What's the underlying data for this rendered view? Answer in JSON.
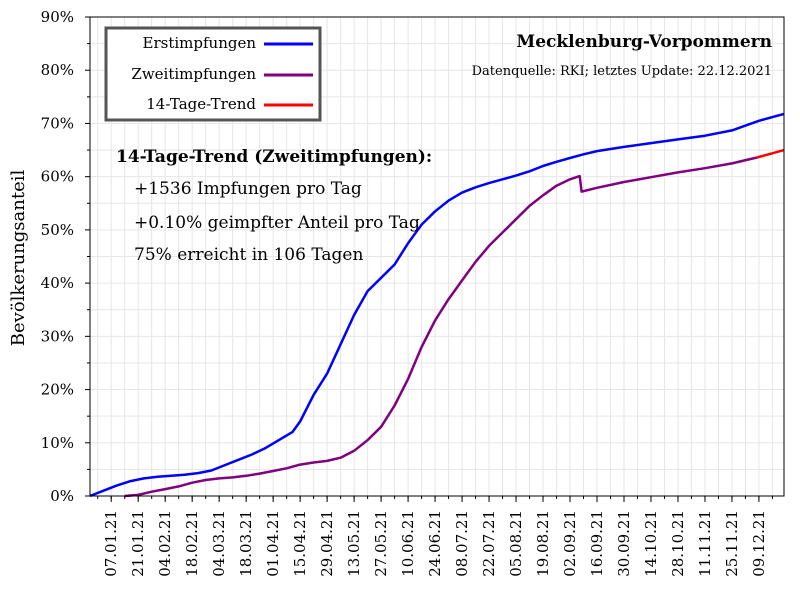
{
  "chart_data": {
    "type": "line",
    "title": "Mecklenburg-Vorpommern",
    "subtitle": "Datenquelle: RKI; letztes Update: 22.12.2021",
    "ylabel": "Bevölkerungsanteil",
    "xlabel": "",
    "ylim": [
      0,
      90
    ],
    "y_ticks": [
      0,
      10,
      20,
      30,
      40,
      50,
      60,
      70,
      80,
      90
    ],
    "y_tick_labels": [
      "0%",
      "10%",
      "20%",
      "30%",
      "40%",
      "50%",
      "60%",
      "70%",
      "80%",
      "90%"
    ],
    "x_ticks": [
      "2021-01-07",
      "2021-01-21",
      "2021-02-04",
      "2021-02-18",
      "2021-03-04",
      "2021-03-18",
      "2021-04-01",
      "2021-04-15",
      "2021-04-29",
      "2021-05-13",
      "2021-05-27",
      "2021-06-10",
      "2021-06-24",
      "2021-07-08",
      "2021-07-22",
      "2021-08-05",
      "2021-08-19",
      "2021-09-02",
      "2021-09-16",
      "2021-09-30",
      "2021-10-14",
      "2021-10-28",
      "2021-11-11",
      "2021-11-25",
      "2021-12-09"
    ],
    "x_tick_labels": [
      "07.01.21",
      "21.01.21",
      "04.02.21",
      "18.02.21",
      "04.03.21",
      "18.03.21",
      "01.04.21",
      "15.04.21",
      "29.04.21",
      "13.05.21",
      "27.05.21",
      "10.06.21",
      "24.06.21",
      "08.07.21",
      "22.07.21",
      "05.08.21",
      "19.08.21",
      "02.09.21",
      "16.09.21",
      "30.09.21",
      "14.10.21",
      "28.10.21",
      "11.11.21",
      "25.11.21",
      "09.12.21"
    ],
    "xlim": [
      "2020-12-27",
      "2021-12-22"
    ],
    "grid": true,
    "legend_position": "top-left",
    "series": [
      {
        "name": "Erstimpfungen",
        "color": "#0000ff",
        "points": [
          [
            "2020-12-27",
            0
          ],
          [
            "2021-01-03",
            1.0
          ],
          [
            "2021-01-10",
            2.0
          ],
          [
            "2021-01-17",
            2.8
          ],
          [
            "2021-01-24",
            3.3
          ],
          [
            "2021-01-31",
            3.6
          ],
          [
            "2021-02-07",
            3.8
          ],
          [
            "2021-02-14",
            4.0
          ],
          [
            "2021-02-21",
            4.3
          ],
          [
            "2021-02-28",
            4.8
          ],
          [
            "2021-03-07",
            5.8
          ],
          [
            "2021-03-14",
            6.8
          ],
          [
            "2021-03-21",
            7.8
          ],
          [
            "2021-03-28",
            9.0
          ],
          [
            "2021-04-04",
            10.5
          ],
          [
            "2021-04-11",
            12.0
          ],
          [
            "2021-04-15",
            14.0
          ],
          [
            "2021-04-22",
            19.0
          ],
          [
            "2021-04-29",
            23.0
          ],
          [
            "2021-05-06",
            28.5
          ],
          [
            "2021-05-13",
            34.0
          ],
          [
            "2021-05-20",
            38.5
          ],
          [
            "2021-05-27",
            41.0
          ],
          [
            "2021-06-03",
            43.5
          ],
          [
            "2021-06-10",
            47.5
          ],
          [
            "2021-06-17",
            51.0
          ],
          [
            "2021-06-24",
            53.5
          ],
          [
            "2021-07-01",
            55.5
          ],
          [
            "2021-07-08",
            57.0
          ],
          [
            "2021-07-15",
            58.0
          ],
          [
            "2021-07-22",
            58.8
          ],
          [
            "2021-07-29",
            59.5
          ],
          [
            "2021-08-05",
            60.2
          ],
          [
            "2021-08-12",
            61.0
          ],
          [
            "2021-08-19",
            62.0
          ],
          [
            "2021-08-26",
            62.8
          ],
          [
            "2021-09-02",
            63.5
          ],
          [
            "2021-09-09",
            64.2
          ],
          [
            "2021-09-16",
            64.8
          ],
          [
            "2021-09-30",
            65.6
          ],
          [
            "2021-10-14",
            66.3
          ],
          [
            "2021-10-28",
            67.0
          ],
          [
            "2021-11-11",
            67.7
          ],
          [
            "2021-11-25",
            68.7
          ],
          [
            "2021-12-09",
            70.5
          ],
          [
            "2021-12-22",
            71.8
          ]
        ]
      },
      {
        "name": "Zweitimpfungen",
        "color": "#800080",
        "points": [
          [
            "2021-01-14",
            0
          ],
          [
            "2021-01-21",
            0.2
          ],
          [
            "2021-01-28",
            0.8
          ],
          [
            "2021-02-04",
            1.3
          ],
          [
            "2021-02-11",
            1.8
          ],
          [
            "2021-02-18",
            2.5
          ],
          [
            "2021-02-25",
            3.0
          ],
          [
            "2021-03-04",
            3.3
          ],
          [
            "2021-03-11",
            3.5
          ],
          [
            "2021-03-18",
            3.8
          ],
          [
            "2021-03-25",
            4.2
          ],
          [
            "2021-04-01",
            4.7
          ],
          [
            "2021-04-08",
            5.2
          ],
          [
            "2021-04-15",
            5.9
          ],
          [
            "2021-04-22",
            6.3
          ],
          [
            "2021-04-29",
            6.6
          ],
          [
            "2021-05-06",
            7.2
          ],
          [
            "2021-05-13",
            8.5
          ],
          [
            "2021-05-20",
            10.5
          ],
          [
            "2021-05-27",
            13.0
          ],
          [
            "2021-06-03",
            17.0
          ],
          [
            "2021-06-10",
            22.0
          ],
          [
            "2021-06-17",
            28.0
          ],
          [
            "2021-06-24",
            33.0
          ],
          [
            "2021-07-01",
            37.0
          ],
          [
            "2021-07-08",
            40.5
          ],
          [
            "2021-07-15",
            44.0
          ],
          [
            "2021-07-22",
            47.0
          ],
          [
            "2021-07-29",
            49.5
          ],
          [
            "2021-08-05",
            52.0
          ],
          [
            "2021-08-12",
            54.5
          ],
          [
            "2021-08-19",
            56.5
          ],
          [
            "2021-08-26",
            58.3
          ],
          [
            "2021-09-02",
            59.5
          ],
          [
            "2021-09-07",
            60.1
          ],
          [
            "2021-09-08",
            57.2
          ],
          [
            "2021-09-16",
            57.9
          ],
          [
            "2021-09-30",
            59.0
          ],
          [
            "2021-10-14",
            59.9
          ],
          [
            "2021-10-28",
            60.8
          ],
          [
            "2021-11-11",
            61.6
          ],
          [
            "2021-11-25",
            62.5
          ],
          [
            "2021-12-08",
            63.6
          ]
        ]
      },
      {
        "name": "14-Tage-Trend",
        "color": "#ff0000",
        "points": [
          [
            "2021-12-08",
            63.6
          ],
          [
            "2021-12-22",
            65.0
          ]
        ]
      }
    ],
    "annotation": {
      "heading": "14-Tage-Trend (Zweitimpfungen):",
      "lines": [
        "+1536 Impfungen pro Tag",
        "+0.10% geimpfter Anteil pro Tag",
        "75% erreicht in 106 Tagen"
      ]
    }
  }
}
